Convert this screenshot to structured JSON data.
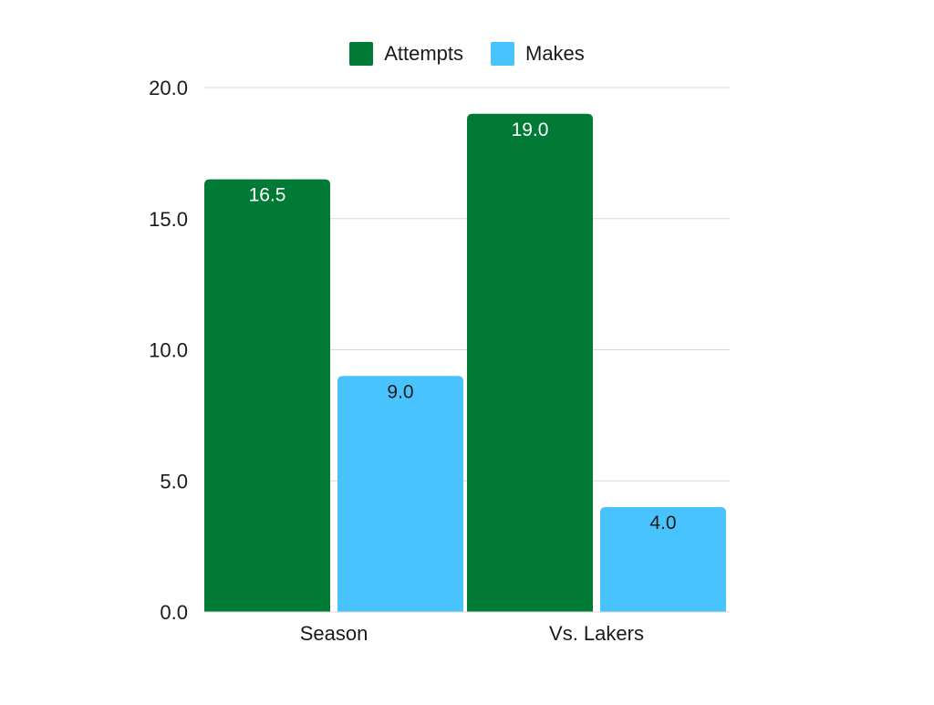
{
  "chart_data": {
    "type": "bar",
    "categories": [
      "Season",
      "Vs. Lakers"
    ],
    "series": [
      {
        "name": "Attempts",
        "values": [
          16.5,
          19.0
        ],
        "labels": [
          "16.5",
          "19.0"
        ],
        "color": "#017a36",
        "label_color": "#ffffff"
      },
      {
        "name": "Makes",
        "values": [
          9.0,
          4.0
        ],
        "labels": [
          "9.0",
          "4.0"
        ],
        "color": "#48c3fd",
        "label_color": "#1a1a1a"
      }
    ],
    "title": "",
    "xlabel": "",
    "ylabel": "",
    "ylim": [
      0,
      20
    ],
    "yticks": [
      0,
      5,
      10,
      15,
      20
    ],
    "ytick_labels": [
      "0.0",
      "5.0",
      "10.0",
      "15.0",
      "20.0"
    ],
    "grid": true,
    "legend_position": "top-center"
  }
}
